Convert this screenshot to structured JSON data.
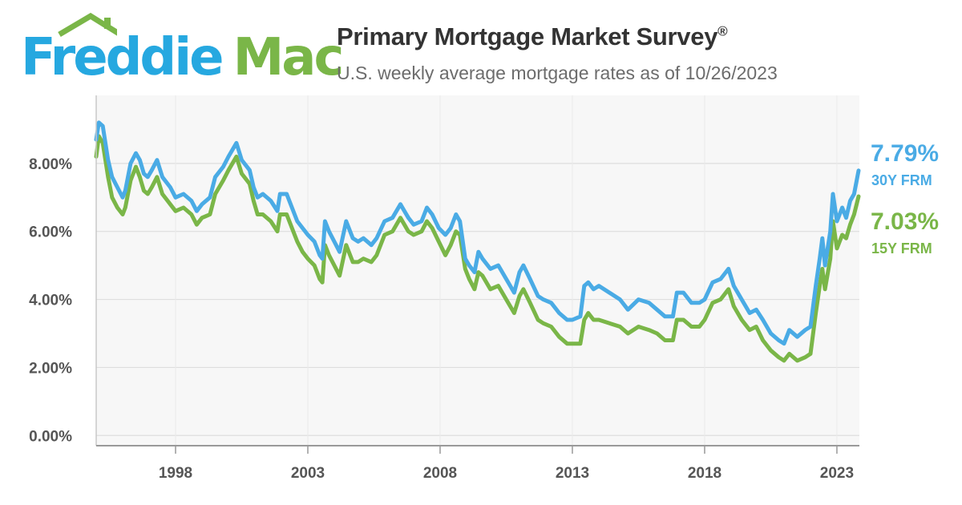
{
  "header": {
    "logo": {
      "text_part1": "Freddie",
      "text_part2": "Mac",
      "primary_color": "#26a8e0",
      "secondary_color": "#7ab648"
    },
    "title": "Primary Mortgage Market Survey",
    "title_mark": "®",
    "subtitle": "U.S. weekly average mortgage rates as of 10/26/2023"
  },
  "callouts": {
    "frm30": {
      "value": "7.79%",
      "label": "30Y FRM",
      "color": "#4aabe5"
    },
    "frm15": {
      "value": "7.03%",
      "label": "15Y FRM",
      "color": "#7ab648"
    }
  },
  "chart_data": {
    "type": "line",
    "title": "",
    "xlabel": "",
    "ylabel": "",
    "xlim": [
      1995.0,
      2023.85
    ],
    "ylim": [
      -0.3,
      10.0
    ],
    "yticks": [
      0,
      2,
      4,
      6,
      8
    ],
    "ytick_labels": [
      "0.00%",
      "2.00%",
      "4.00%",
      "6.00%",
      "8.00%"
    ],
    "xticks": [
      1998,
      2003,
      2008,
      2013,
      2018,
      2023
    ],
    "xtick_labels": [
      "1998",
      "2003",
      "2008",
      "2013",
      "2018",
      "2023"
    ],
    "grid": true,
    "legend": "right",
    "series": [
      {
        "name": "30Y FRM",
        "color": "#4aabe5",
        "points": [
          [
            1995.0,
            8.7
          ],
          [
            1995.1,
            9.2
          ],
          [
            1995.25,
            9.1
          ],
          [
            1995.45,
            8.1
          ],
          [
            1995.6,
            7.6
          ],
          [
            1995.8,
            7.3
          ],
          [
            1996.0,
            7.0
          ],
          [
            1996.1,
            7.2
          ],
          [
            1996.3,
            8.0
          ],
          [
            1996.5,
            8.3
          ],
          [
            1996.65,
            8.1
          ],
          [
            1996.8,
            7.7
          ],
          [
            1996.95,
            7.6
          ],
          [
            1997.1,
            7.8
          ],
          [
            1997.3,
            8.1
          ],
          [
            1997.5,
            7.6
          ],
          [
            1997.8,
            7.3
          ],
          [
            1998.0,
            7.0
          ],
          [
            1998.3,
            7.1
          ],
          [
            1998.6,
            6.9
          ],
          [
            1998.8,
            6.6
          ],
          [
            1999.0,
            6.8
          ],
          [
            1999.3,
            7.0
          ],
          [
            1999.5,
            7.6
          ],
          [
            1999.8,
            7.9
          ],
          [
            2000.0,
            8.2
          ],
          [
            2000.3,
            8.6
          ],
          [
            2000.5,
            8.1
          ],
          [
            2000.8,
            7.8
          ],
          [
            2000.95,
            7.3
          ],
          [
            2001.1,
            7.0
          ],
          [
            2001.3,
            7.1
          ],
          [
            2001.6,
            6.9
          ],
          [
            2001.85,
            6.6
          ],
          [
            2001.95,
            7.1
          ],
          [
            2002.2,
            7.1
          ],
          [
            2002.4,
            6.7
          ],
          [
            2002.6,
            6.3
          ],
          [
            2002.8,
            6.1
          ],
          [
            2003.0,
            5.9
          ],
          [
            2003.25,
            5.7
          ],
          [
            2003.45,
            5.3
          ],
          [
            2003.55,
            5.2
          ],
          [
            2003.65,
            6.3
          ],
          [
            2003.8,
            6.0
          ],
          [
            2004.0,
            5.7
          ],
          [
            2004.2,
            5.4
          ],
          [
            2004.45,
            6.3
          ],
          [
            2004.7,
            5.8
          ],
          [
            2004.9,
            5.7
          ],
          [
            2005.1,
            5.8
          ],
          [
            2005.4,
            5.6
          ],
          [
            2005.6,
            5.8
          ],
          [
            2005.9,
            6.3
          ],
          [
            2006.2,
            6.4
          ],
          [
            2006.5,
            6.8
          ],
          [
            2006.8,
            6.4
          ],
          [
            2007.0,
            6.2
          ],
          [
            2007.3,
            6.3
          ],
          [
            2007.5,
            6.7
          ],
          [
            2007.7,
            6.5
          ],
          [
            2007.95,
            6.1
          ],
          [
            2008.2,
            5.9
          ],
          [
            2008.4,
            6.1
          ],
          [
            2008.6,
            6.5
          ],
          [
            2008.75,
            6.3
          ],
          [
            2008.95,
            5.2
          ],
          [
            2009.1,
            5.0
          ],
          [
            2009.3,
            4.8
          ],
          [
            2009.45,
            5.4
          ],
          [
            2009.6,
            5.2
          ],
          [
            2009.9,
            4.9
          ],
          [
            2010.2,
            5.0
          ],
          [
            2010.5,
            4.6
          ],
          [
            2010.8,
            4.2
          ],
          [
            2011.0,
            4.8
          ],
          [
            2011.15,
            5.0
          ],
          [
            2011.4,
            4.6
          ],
          [
            2011.7,
            4.1
          ],
          [
            2011.9,
            4.0
          ],
          [
            2012.2,
            3.9
          ],
          [
            2012.5,
            3.6
          ],
          [
            2012.8,
            3.4
          ],
          [
            2013.0,
            3.4
          ],
          [
            2013.3,
            3.5
          ],
          [
            2013.45,
            4.4
          ],
          [
            2013.6,
            4.5
          ],
          [
            2013.8,
            4.3
          ],
          [
            2014.0,
            4.4
          ],
          [
            2014.4,
            4.2
          ],
          [
            2014.8,
            4.0
          ],
          [
            2015.1,
            3.7
          ],
          [
            2015.5,
            4.0
          ],
          [
            2015.9,
            3.9
          ],
          [
            2016.2,
            3.7
          ],
          [
            2016.5,
            3.5
          ],
          [
            2016.8,
            3.5
          ],
          [
            2016.95,
            4.2
          ],
          [
            2017.2,
            4.2
          ],
          [
            2017.5,
            3.9
          ],
          [
            2017.8,
            3.9
          ],
          [
            2018.0,
            4.0
          ],
          [
            2018.3,
            4.5
          ],
          [
            2018.6,
            4.6
          ],
          [
            2018.9,
            4.9
          ],
          [
            2019.1,
            4.4
          ],
          [
            2019.4,
            4.0
          ],
          [
            2019.7,
            3.6
          ],
          [
            2019.95,
            3.7
          ],
          [
            2020.2,
            3.4
          ],
          [
            2020.5,
            3.0
          ],
          [
            2020.8,
            2.8
          ],
          [
            2021.0,
            2.7
          ],
          [
            2021.2,
            3.1
          ],
          [
            2021.5,
            2.9
          ],
          [
            2021.8,
            3.1
          ],
          [
            2022.0,
            3.2
          ],
          [
            2022.2,
            4.4
          ],
          [
            2022.35,
            5.2
          ],
          [
            2022.45,
            5.8
          ],
          [
            2022.55,
            5.0
          ],
          [
            2022.75,
            6.0
          ],
          [
            2022.85,
            7.1
          ],
          [
            2023.0,
            6.3
          ],
          [
            2023.2,
            6.7
          ],
          [
            2023.35,
            6.4
          ],
          [
            2023.5,
            6.9
          ],
          [
            2023.65,
            7.1
          ],
          [
            2023.82,
            7.79
          ]
        ]
      },
      {
        "name": "15Y FRM",
        "color": "#7ab648",
        "points": [
          [
            1995.0,
            8.2
          ],
          [
            1995.1,
            8.8
          ],
          [
            1995.25,
            8.6
          ],
          [
            1995.45,
            7.6
          ],
          [
            1995.6,
            7.0
          ],
          [
            1995.8,
            6.7
          ],
          [
            1996.0,
            6.5
          ],
          [
            1996.1,
            6.7
          ],
          [
            1996.3,
            7.5
          ],
          [
            1996.5,
            7.9
          ],
          [
            1996.65,
            7.6
          ],
          [
            1996.8,
            7.2
          ],
          [
            1996.95,
            7.1
          ],
          [
            1997.1,
            7.3
          ],
          [
            1997.3,
            7.6
          ],
          [
            1997.5,
            7.1
          ],
          [
            1997.8,
            6.8
          ],
          [
            1998.0,
            6.6
          ],
          [
            1998.3,
            6.7
          ],
          [
            1998.6,
            6.5
          ],
          [
            1998.8,
            6.2
          ],
          [
            1999.0,
            6.4
          ],
          [
            1999.3,
            6.5
          ],
          [
            1999.5,
            7.1
          ],
          [
            1999.8,
            7.5
          ],
          [
            2000.0,
            7.8
          ],
          [
            2000.3,
            8.2
          ],
          [
            2000.5,
            7.7
          ],
          [
            2000.8,
            7.4
          ],
          [
            2000.95,
            6.9
          ],
          [
            2001.1,
            6.5
          ],
          [
            2001.3,
            6.5
          ],
          [
            2001.6,
            6.3
          ],
          [
            2001.85,
            6.0
          ],
          [
            2001.95,
            6.5
          ],
          [
            2002.2,
            6.5
          ],
          [
            2002.4,
            6.1
          ],
          [
            2002.6,
            5.7
          ],
          [
            2002.8,
            5.4
          ],
          [
            2003.0,
            5.2
          ],
          [
            2003.25,
            5.0
          ],
          [
            2003.45,
            4.6
          ],
          [
            2003.55,
            4.5
          ],
          [
            2003.65,
            5.6
          ],
          [
            2003.8,
            5.3
          ],
          [
            2004.0,
            5.0
          ],
          [
            2004.2,
            4.7
          ],
          [
            2004.45,
            5.6
          ],
          [
            2004.7,
            5.1
          ],
          [
            2004.9,
            5.1
          ],
          [
            2005.1,
            5.2
          ],
          [
            2005.4,
            5.1
          ],
          [
            2005.6,
            5.3
          ],
          [
            2005.9,
            5.9
          ],
          [
            2006.2,
            6.0
          ],
          [
            2006.5,
            6.4
          ],
          [
            2006.8,
            6.0
          ],
          [
            2007.0,
            5.9
          ],
          [
            2007.3,
            6.0
          ],
          [
            2007.5,
            6.3
          ],
          [
            2007.7,
            6.1
          ],
          [
            2007.95,
            5.7
          ],
          [
            2008.2,
            5.3
          ],
          [
            2008.4,
            5.6
          ],
          [
            2008.6,
            6.0
          ],
          [
            2008.75,
            5.9
          ],
          [
            2008.95,
            4.9
          ],
          [
            2009.1,
            4.6
          ],
          [
            2009.3,
            4.3
          ],
          [
            2009.45,
            4.8
          ],
          [
            2009.6,
            4.7
          ],
          [
            2009.9,
            4.3
          ],
          [
            2010.2,
            4.4
          ],
          [
            2010.5,
            4.0
          ],
          [
            2010.8,
            3.6
          ],
          [
            2011.0,
            4.1
          ],
          [
            2011.15,
            4.3
          ],
          [
            2011.4,
            3.9
          ],
          [
            2011.7,
            3.4
          ],
          [
            2011.9,
            3.3
          ],
          [
            2012.2,
            3.2
          ],
          [
            2012.5,
            2.9
          ],
          [
            2012.8,
            2.7
          ],
          [
            2013.0,
            2.7
          ],
          [
            2013.3,
            2.7
          ],
          [
            2013.45,
            3.4
          ],
          [
            2013.6,
            3.6
          ],
          [
            2013.8,
            3.4
          ],
          [
            2014.0,
            3.4
          ],
          [
            2014.4,
            3.3
          ],
          [
            2014.8,
            3.2
          ],
          [
            2015.1,
            3.0
          ],
          [
            2015.5,
            3.2
          ],
          [
            2015.9,
            3.1
          ],
          [
            2016.2,
            3.0
          ],
          [
            2016.5,
            2.8
          ],
          [
            2016.8,
            2.8
          ],
          [
            2016.95,
            3.4
          ],
          [
            2017.2,
            3.4
          ],
          [
            2017.5,
            3.2
          ],
          [
            2017.8,
            3.2
          ],
          [
            2018.0,
            3.4
          ],
          [
            2018.3,
            3.9
          ],
          [
            2018.6,
            4.0
          ],
          [
            2018.9,
            4.3
          ],
          [
            2019.1,
            3.8
          ],
          [
            2019.4,
            3.4
          ],
          [
            2019.7,
            3.1
          ],
          [
            2019.95,
            3.2
          ],
          [
            2020.2,
            2.8
          ],
          [
            2020.5,
            2.5
          ],
          [
            2020.8,
            2.3
          ],
          [
            2021.0,
            2.2
          ],
          [
            2021.2,
            2.4
          ],
          [
            2021.5,
            2.2
          ],
          [
            2021.8,
            2.3
          ],
          [
            2022.0,
            2.4
          ],
          [
            2022.2,
            3.6
          ],
          [
            2022.35,
            4.4
          ],
          [
            2022.45,
            4.9
          ],
          [
            2022.55,
            4.3
          ],
          [
            2022.75,
            5.2
          ],
          [
            2022.85,
            6.3
          ],
          [
            2023.0,
            5.5
          ],
          [
            2023.2,
            5.9
          ],
          [
            2023.35,
            5.8
          ],
          [
            2023.5,
            6.2
          ],
          [
            2023.65,
            6.5
          ],
          [
            2023.82,
            7.03
          ]
        ]
      }
    ]
  }
}
